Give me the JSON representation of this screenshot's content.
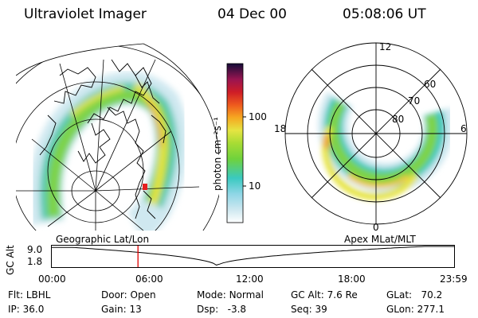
{
  "header": {
    "instrument": "Ultraviolet Imager",
    "date": "04 Dec 00",
    "time": "05:08:06 UT"
  },
  "colorbar": {
    "label": "photon cm⁻²s⁻¹",
    "tick_high": "100",
    "tick_low": "10"
  },
  "polar_plot": {
    "mlt_labels": [
      "12",
      "18",
      "6",
      "0"
    ],
    "lat_labels": [
      "60",
      "70",
      "80"
    ]
  },
  "timeline": {
    "ylabel": "GC Alt",
    "y_top": "9.0",
    "y_bottom": "1.8",
    "left_title": "Geographic Lat/Lon",
    "right_title": "Apex MLat/MLT",
    "times": [
      "00:00",
      "06:00",
      "12:00",
      "18:00",
      "23:59"
    ],
    "current_time_fraction": 0.2139
  },
  "status": {
    "flt_label": "Flt:",
    "flt_value": "LBHL",
    "ip_label": "IP:",
    "ip_value": "36.0",
    "door_label": "Door:",
    "door_value": "Open",
    "gain_label": "Gain:",
    "gain_value": "13",
    "mode_label": "Mode:",
    "mode_value": "Normal",
    "dsp_label": "Dsp:",
    "dsp_value": "-3.8",
    "gcalt_label": "GC Alt:",
    "gcalt_value": "7.6 Re",
    "seq_label": "Seq:",
    "seq_value": "39",
    "glat_label": "GLat:",
    "glat_value": "70.2",
    "glon_label": "GLon:",
    "glon_value": "277.1"
  }
}
